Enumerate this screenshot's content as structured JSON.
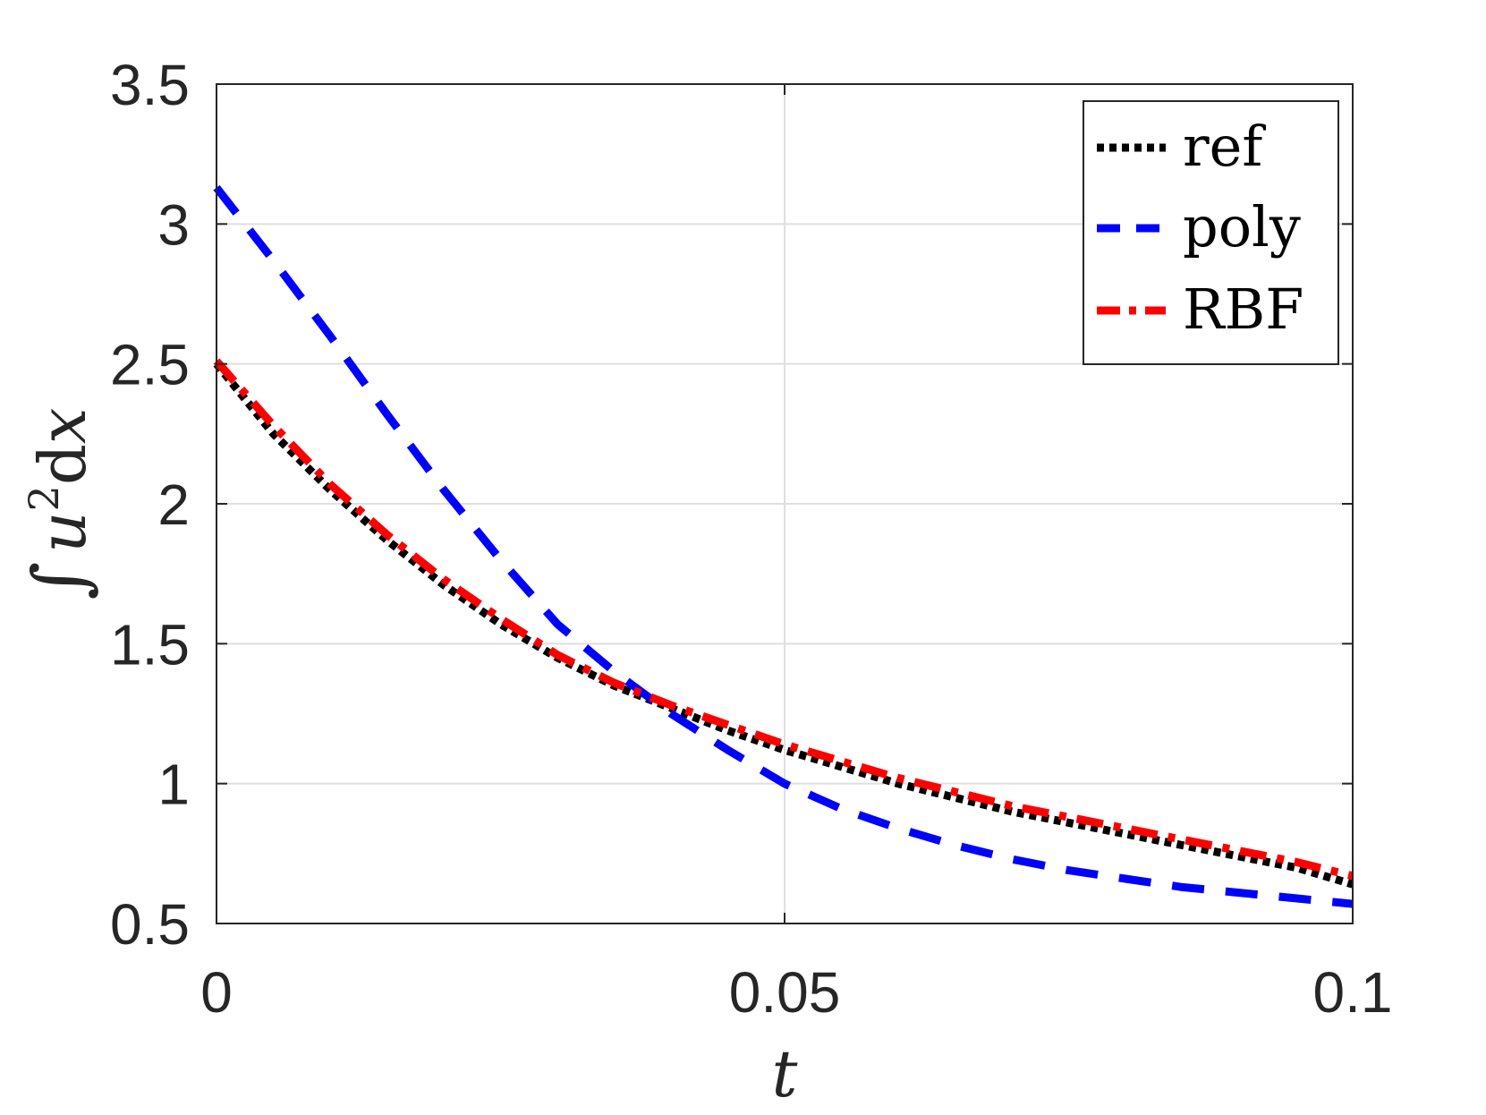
{
  "chart_data": {
    "type": "line",
    "title": "",
    "xlabel": "t",
    "ylabel": {
      "integral": "∫",
      "u": "u",
      "exponent": "2",
      "d": "d",
      "x": "x"
    },
    "xlim": [
      0,
      0.1
    ],
    "ylim": [
      0.5,
      3.5
    ],
    "xticks": [
      0,
      0.05,
      0.1
    ],
    "xtick_labels": [
      "0",
      "0.05",
      "0.1"
    ],
    "yticks": [
      0.5,
      1,
      1.5,
      2,
      2.5,
      3,
      3.5
    ],
    "ytick_labels": [
      "0.5",
      "1",
      "1.5",
      "2",
      "2.5",
      "3",
      "3.5"
    ],
    "grid": true,
    "legend_position": "top-right",
    "x": [
      0,
      0.005,
      0.01,
      0.015,
      0.02,
      0.025,
      0.03,
      0.035,
      0.04,
      0.045,
      0.05,
      0.055,
      0.06,
      0.065,
      0.07,
      0.075,
      0.08,
      0.085,
      0.09,
      0.095,
      0.1
    ],
    "series": [
      {
        "name": "ref",
        "color": "#000000",
        "style": "dotted",
        "values": [
          2.5,
          2.25,
          2.05,
          1.87,
          1.71,
          1.57,
          1.45,
          1.35,
          1.27,
          1.19,
          1.12,
          1.06,
          1.0,
          0.95,
          0.9,
          0.86,
          0.82,
          0.78,
          0.74,
          0.7,
          0.64
        ]
      },
      {
        "name": "poly",
        "color": "#0000ff",
        "style": "dashed",
        "values": [
          3.13,
          2.87,
          2.6,
          2.32,
          2.05,
          1.8,
          1.57,
          1.4,
          1.25,
          1.12,
          1.0,
          0.91,
          0.84,
          0.78,
          0.73,
          0.69,
          0.66,
          0.63,
          0.61,
          0.59,
          0.57
        ]
      },
      {
        "name": "RBF",
        "color": "#ff0000",
        "style": "dashdot",
        "values": [
          2.51,
          2.28,
          2.07,
          1.89,
          1.73,
          1.59,
          1.46,
          1.36,
          1.28,
          1.21,
          1.14,
          1.08,
          1.02,
          0.97,
          0.92,
          0.88,
          0.84,
          0.8,
          0.76,
          0.72,
          0.67
        ]
      }
    ]
  }
}
